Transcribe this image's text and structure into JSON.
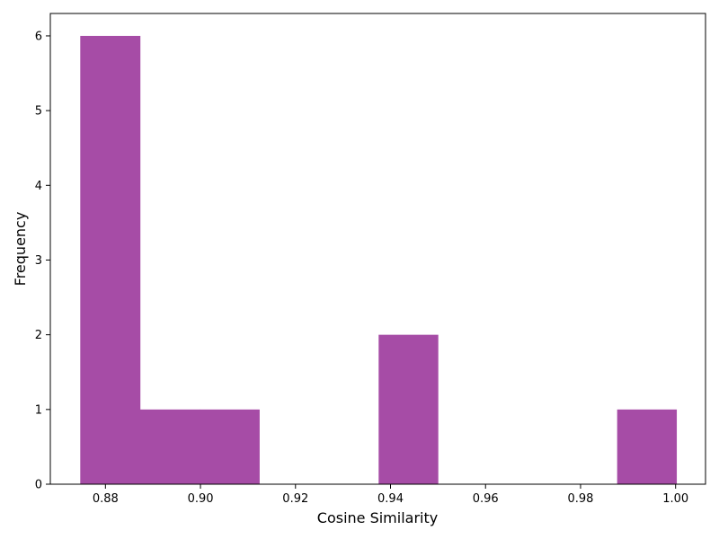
{
  "chart_data": {
    "type": "bar",
    "title": "",
    "xlabel": "Cosine Similarity",
    "ylabel": "Frequency",
    "bar_color": "#a64ca6",
    "xlim": [
      0.8684,
      1.0063
    ],
    "ylim": [
      0,
      6.3
    ],
    "xticks": [
      0.88,
      0.9,
      0.92,
      0.94,
      0.96,
      0.98,
      1.0
    ],
    "xtick_labels": [
      "0.88",
      "0.90",
      "0.92",
      "0.94",
      "0.96",
      "0.98",
      "1.00"
    ],
    "yticks": [
      0,
      1,
      2,
      3,
      4,
      5,
      6
    ],
    "ytick_labels": [
      "0",
      "1",
      "2",
      "3",
      "4",
      "5",
      "6"
    ],
    "bins": [
      {
        "start": 0.8747,
        "end": 0.8873,
        "count": 6
      },
      {
        "start": 0.8873,
        "end": 0.8998,
        "count": 1
      },
      {
        "start": 0.8998,
        "end": 0.9124,
        "count": 1
      },
      {
        "start": 0.9124,
        "end": 0.9249,
        "count": 0
      },
      {
        "start": 0.9249,
        "end": 0.9375,
        "count": 0
      },
      {
        "start": 0.9375,
        "end": 0.95,
        "count": 2
      },
      {
        "start": 0.95,
        "end": 0.9626,
        "count": 0
      },
      {
        "start": 0.9626,
        "end": 0.9751,
        "count": 0
      },
      {
        "start": 0.9751,
        "end": 0.9877,
        "count": 0
      },
      {
        "start": 0.9877,
        "end": 1.0002,
        "count": 1
      }
    ]
  }
}
